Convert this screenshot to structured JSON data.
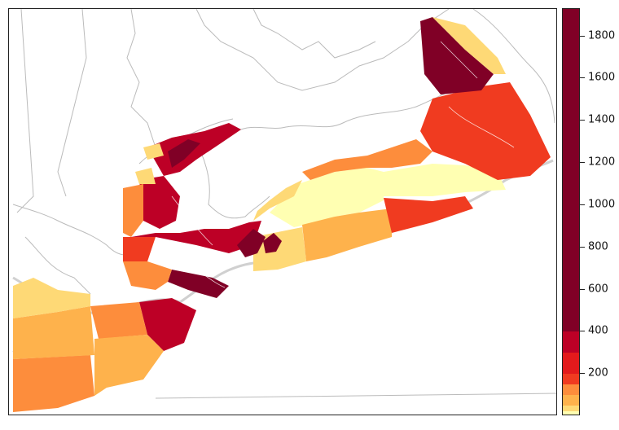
{
  "legend": {
    "min": 0,
    "max": 1930,
    "ticks": [
      "200",
      "400",
      "600",
      "800",
      "1000",
      "1200",
      "1400",
      "1600",
      "1800"
    ],
    "bands": [
      {
        "from": 0,
        "to": 25,
        "color": "#ffffb2"
      },
      {
        "from": 25,
        "to": 50,
        "color": "#fed976"
      },
      {
        "from": 50,
        "to": 100,
        "color": "#feb24c"
      },
      {
        "from": 100,
        "to": 150,
        "color": "#fd8d3c"
      },
      {
        "from": 150,
        "to": 200,
        "color": "#f03b20"
      },
      {
        "from": 200,
        "to": 300,
        "color": "#e31a1c"
      },
      {
        "from": 300,
        "to": 400,
        "color": "#bd0026"
      },
      {
        "from": 400,
        "to": 1930,
        "color": "#800026"
      }
    ]
  },
  "map": {
    "land_line_color": "#bbbbbb",
    "shelf_line_color": "#d0d0d0"
  }
}
